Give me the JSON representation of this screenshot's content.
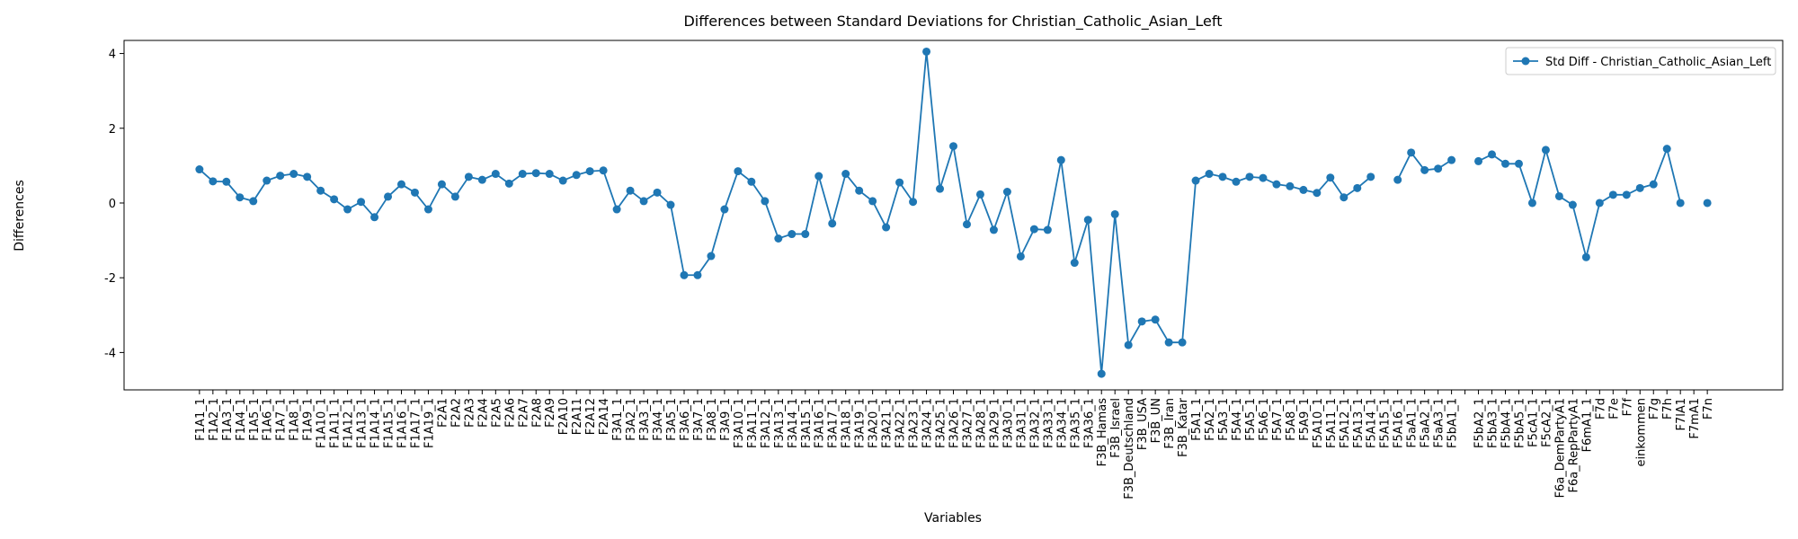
{
  "chart_data": {
    "type": "line",
    "title": "Differences between Standard Deviations for Christian_Catholic_Asian_Left",
    "xlabel": "Variables",
    "ylabel": "Differences",
    "categories": [
      "F1A1_1",
      "F1A2_1",
      "F1A3_1",
      "F1A4_1",
      "F1A5_1",
      "F1A6_1",
      "F1A7_1",
      "F1A8_1",
      "F1A9_1",
      "F1A10_1",
      "F1A11_1",
      "F1A12_1",
      "F1A13_1",
      "F1A14_1",
      "F1A15_1",
      "F1A16_1",
      "F1A17_1",
      "F1A19_1",
      "F2A1",
      "F2A2",
      "F2A3",
      "F2A4",
      "F2A5",
      "F2A6",
      "F2A7",
      "F2A8",
      "F2A9",
      "F2A10",
      "F2A11",
      "F2A12",
      "F2A14",
      "F3A1_1",
      "F3A2_1",
      "F3A3_1",
      "F3A4_1",
      "F3A5_1",
      "F3A6_1",
      "F3A7_1",
      "F3A8_1",
      "F3A9_1",
      "F3A10_1",
      "F3A11_1",
      "F3A12_1",
      "F3A13_1",
      "F3A14_1",
      "F3A15_1",
      "F3A16_1",
      "F3A17_1",
      "F3A18_1",
      "F3A19_1",
      "F3A20_1",
      "F3A21_1",
      "F3A22_1",
      "F3A23_1",
      "F3A24_1",
      "F3A25_1",
      "F3A26_1",
      "F3A27_1",
      "F3A28_1",
      "F3A29_1",
      "F3A30_1",
      "F3A31_1",
      "F3A32_1",
      "F3A33_1",
      "F3A34_1",
      "F3A35_1",
      "F3A36_1",
      "F3B_Hamas",
      "F3B_Israel",
      "F3B_Deutschland",
      "F3B_USA",
      "F3B_UN",
      "F3B_Iran",
      "F3B_Katar",
      "F5A1_1",
      "F5A2_1",
      "F5A3_1",
      "F5A4_1",
      "F5A5_1",
      "F5A6_1",
      "F5A7_1",
      "F5A8_1",
      "F5A9_1",
      "F5A10_1",
      "F5A11_1",
      "F5A12_1",
      "F5A13_1",
      "F5A14_1",
      "F5A15_1",
      "F5A16_1",
      "F5aA1_1",
      "F5aA2_1",
      "F5aA3_1",
      "F5bA1_1",
      null,
      "F5bA2_1",
      "F5bA3_1",
      "F5bA4_1",
      "F5bA5_1",
      "F5cA1_1",
      "F5cA2_1",
      "F6a_DemPartyA1",
      "F6a_RepPartyA1",
      "F6mA1_1",
      "F7d",
      "F7e",
      "F7f",
      "einkommen",
      "F7g",
      "F7h",
      "F7lA1",
      "F7mA1",
      "F7n"
    ],
    "series": [
      {
        "name": "Std Diff - Christian_Catholic_Asian_Left",
        "color": "#1f77b4",
        "values": [
          0.9,
          0.58,
          0.57,
          0.15,
          0.05,
          0.6,
          0.73,
          0.78,
          0.7,
          0.33,
          0.1,
          -0.17,
          0.03,
          -0.38,
          0.17,
          0.5,
          0.28,
          -0.17,
          0.5,
          0.17,
          0.7,
          0.62,
          0.78,
          0.52,
          0.78,
          0.8,
          0.78,
          0.6,
          0.75,
          0.85,
          0.87,
          -0.17,
          0.33,
          0.05,
          0.28,
          -0.05,
          -1.93,
          -1.93,
          -1.42,
          -0.17,
          0.85,
          0.57,
          0.05,
          -0.95,
          -0.83,
          -0.83,
          0.72,
          -0.55,
          0.78,
          0.33,
          0.05,
          -0.65,
          0.55,
          0.03,
          4.05,
          0.38,
          1.52,
          -0.57,
          0.23,
          -0.72,
          0.3,
          -1.43,
          -0.7,
          -0.72,
          1.15,
          -1.6,
          -0.45,
          -4.57,
          -0.3,
          -3.8,
          -3.17,
          -3.12,
          -3.73,
          -3.73,
          0.6,
          0.78,
          0.7,
          0.57,
          0.7,
          0.67,
          0.5,
          0.45,
          0.35,
          0.27,
          0.68,
          0.15,
          0.4,
          0.7,
          null,
          0.62,
          1.35,
          0.88,
          0.92,
          1.15,
          null,
          1.12,
          1.3,
          1.05,
          1.05,
          0,
          1.42,
          0.18,
          -0.05,
          -1.45,
          0,
          0.22,
          0.22,
          0.4,
          0.5,
          1.45,
          0,
          null,
          0
        ]
      }
    ],
    "ylim": [
      -5,
      4.35
    ],
    "yticks": [
      -4,
      -2,
      0,
      2,
      4
    ],
    "legend": "upper right"
  }
}
